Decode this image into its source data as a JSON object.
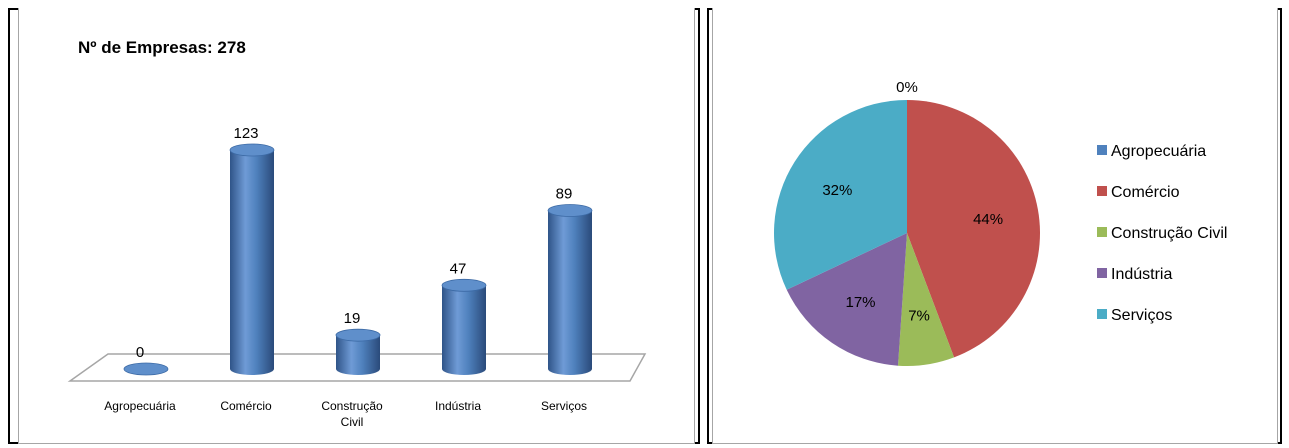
{
  "chart_data": [
    {
      "type": "bar",
      "title": "Nº de Empresas:  278",
      "categories": [
        "Agropecuária",
        "Comércio",
        "Construção Civil",
        "Indústria",
        "Serviços"
      ],
      "category_lines": [
        [
          "Agropecuária"
        ],
        [
          "Comércio"
        ],
        [
          "Construção",
          "Civil"
        ],
        [
          "Indústria"
        ],
        [
          "Serviços"
        ]
      ],
      "values": [
        0,
        123,
        19,
        47,
        89
      ],
      "data_labels": [
        "0",
        "123",
        "19",
        "47",
        "89"
      ],
      "ylim": [
        0,
        130
      ],
      "color": "#4f81bd"
    },
    {
      "type": "pie",
      "categories": [
        "Agropecuária",
        "Comércio",
        "Construção Civil",
        "Indústria",
        "Serviços"
      ],
      "values": [
        0,
        123,
        19,
        47,
        89
      ],
      "data_labels": [
        "0%",
        "44%",
        "7%",
        "17%",
        "32%"
      ],
      "colors": [
        "#4f81bd",
        "#c0504d",
        "#9bbb59",
        "#8064a2",
        "#4bacc6"
      ],
      "legend_position": "right"
    }
  ]
}
